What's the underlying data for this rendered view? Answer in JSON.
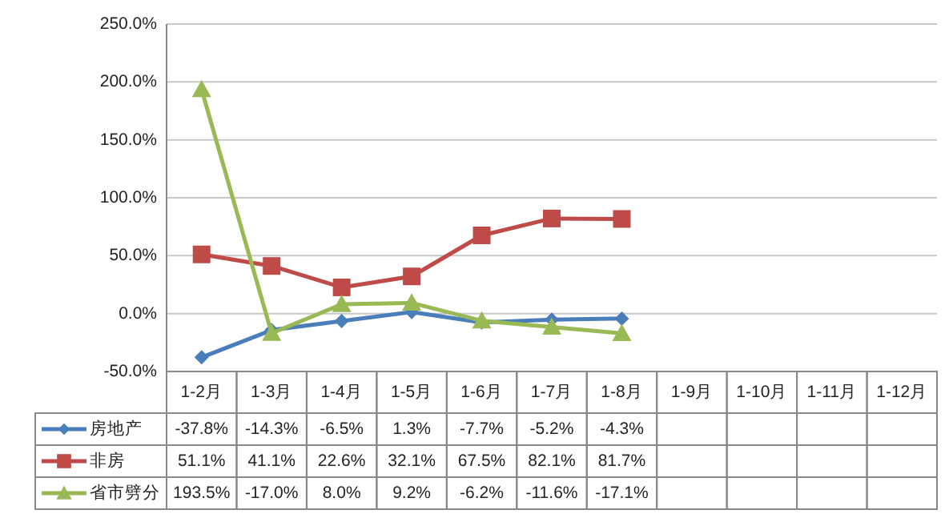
{
  "chart_data": {
    "type": "line",
    "categories": [
      "1-2月",
      "1-3月",
      "1-4月",
      "1-5月",
      "1-6月",
      "1-7月",
      "1-8月",
      "1-9月",
      "1-10月",
      "1-11月",
      "1-12月"
    ],
    "series": [
      {
        "name": "房地产",
        "color": "#4a7ebb",
        "marker": "diamond",
        "values": [
          -37.8,
          -14.3,
          -6.5,
          1.3,
          -7.7,
          -5.2,
          -4.3,
          null,
          null,
          null,
          null
        ],
        "value_labels": [
          "-37.8%",
          "-14.3%",
          "-6.5%",
          "1.3%",
          "-7.7%",
          "-5.2%",
          "-4.3%",
          null,
          null,
          null,
          null
        ]
      },
      {
        "name": "非房",
        "color": "#be4b48",
        "marker": "square",
        "values": [
          51.1,
          41.1,
          22.6,
          32.1,
          67.5,
          82.1,
          81.7,
          null,
          null,
          null,
          null
        ],
        "value_labels": [
          "51.1%",
          "41.1%",
          "22.6%",
          "32.1%",
          "67.5%",
          "82.1%",
          "81.7%",
          null,
          null,
          null,
          null
        ]
      },
      {
        "name": "省市劈分",
        "color": "#98b954",
        "marker": "triangle",
        "values": [
          193.5,
          -17.0,
          8.0,
          9.2,
          -6.2,
          -11.6,
          -17.1,
          null,
          null,
          null,
          null
        ],
        "value_labels": [
          "193.5%",
          "-17.0%",
          "8.0%",
          "9.2%",
          "-6.2%",
          "-11.6%",
          "-17.1%",
          null,
          null,
          null,
          null
        ]
      }
    ],
    "ylim": [
      -50,
      250
    ],
    "yticks": [
      {
        "value": -50,
        "label": "-50.0%"
      },
      {
        "value": 0,
        "label": "0.0%"
      },
      {
        "value": 50,
        "label": "50.0%"
      },
      {
        "value": 100,
        "label": "100.0%"
      },
      {
        "value": 150,
        "label": "150.0%"
      },
      {
        "value": 200,
        "label": "200.0%"
      },
      {
        "value": 250,
        "label": "250.0%"
      }
    ],
    "grid": "y",
    "legend": "bottom"
  }
}
